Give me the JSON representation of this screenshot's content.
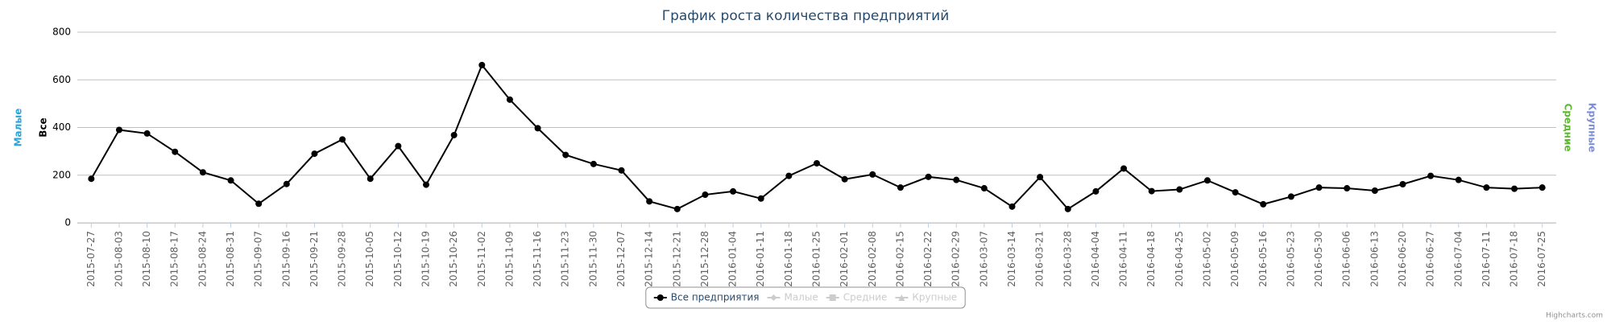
{
  "chart_data": {
    "type": "line",
    "title": "График роста количества предприятий",
    "categories": [
      "2015-07-27",
      "2015-08-03",
      "2015-08-10",
      "2015-08-17",
      "2015-08-24",
      "2015-08-31",
      "2015-09-07",
      "2015-09-16",
      "2015-09-21",
      "2015-09-28",
      "2015-10-05",
      "2015-10-12",
      "2015-10-19",
      "2015-10-26",
      "2015-11-02",
      "2015-11-09",
      "2015-11-16",
      "2015-11-23",
      "2015-11-30",
      "2015-12-07",
      "2015-12-14",
      "2015-12-21",
      "2015-12-28",
      "2016-01-04",
      "2016-01-11",
      "2016-01-18",
      "2016-01-25",
      "2016-02-01",
      "2016-02-08",
      "2016-02-15",
      "2016-02-22",
      "2016-02-29",
      "2016-03-07",
      "2016-03-14",
      "2016-03-21",
      "2016-03-28",
      "2016-04-04",
      "2016-04-11",
      "2016-04-18",
      "2016-04-25",
      "2016-05-02",
      "2016-05-09",
      "2016-05-16",
      "2016-05-23",
      "2016-05-30",
      "2016-06-06",
      "2016-06-13",
      "2016-06-20",
      "2016-06-27",
      "2016-07-04",
      "2016-07-11",
      "2016-07-18",
      "2016-07-25"
    ],
    "series": [
      {
        "name": "Все предприятия",
        "color": "#000000",
        "values": [
          185,
          390,
          375,
          298,
          212,
          178,
          80,
          163,
          290,
          350,
          185,
          322,
          160,
          368,
          662,
          517,
          397,
          285,
          247,
          220,
          90,
          58,
          118,
          132,
          102,
          197,
          250,
          183,
          203,
          148,
          193,
          180,
          145,
          68,
          192,
          58,
          132,
          228,
          133,
          140,
          178,
          128,
          78,
          110,
          148,
          145,
          135,
          162,
          197,
          180,
          148,
          143,
          148
        ]
      }
    ],
    "inactive_legend": [
      "Малые",
      "Средние",
      "Крупные"
    ],
    "axis_titles_left": [
      {
        "text": "Малые",
        "color": "#2ba3d6"
      },
      {
        "text": "Все",
        "color": "#000000"
      }
    ],
    "axis_titles_right": [
      {
        "text": "Средние",
        "color": "#5cb82e"
      },
      {
        "text": "Крупные",
        "color": "#7f8fd6"
      }
    ],
    "ylim": [
      0,
      800
    ],
    "yticks": [
      0,
      200,
      400,
      600,
      800
    ],
    "grid": true,
    "credits": "Highcharts.com"
  }
}
